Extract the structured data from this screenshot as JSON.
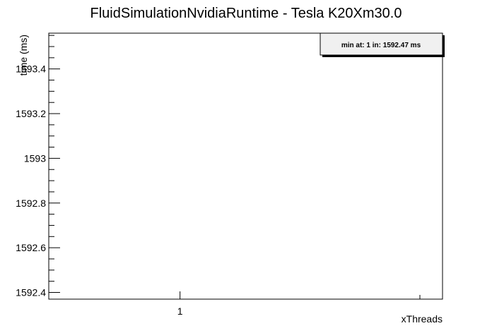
{
  "chart_data": {
    "type": "line",
    "title": "FluidSimulationNvidiaRuntime - Tesla K20Xm30.0",
    "xlabel": "xThreads",
    "ylabel": "time (ms)",
    "x_ticks": [
      1
    ],
    "y_ticks": [
      1592.4,
      1592.6,
      1592.8,
      1593,
      1593.2,
      1593.4
    ],
    "y_tick_labels": [
      "1592.4",
      "1592.6",
      "1592.8",
      "1593",
      "1593.2",
      "1593.4"
    ],
    "x_tick_labels": [
      "1"
    ],
    "ylim": [
      1592.37,
      1593.56
    ],
    "xlim": [
      0.0,
      3.0
    ],
    "series": [
      {
        "x": [
          1
        ],
        "y": [
          1592.47
        ]
      }
    ],
    "annotation": "min at: 1 in: 1592.47 ms",
    "grid": false,
    "legend": "top-right"
  }
}
